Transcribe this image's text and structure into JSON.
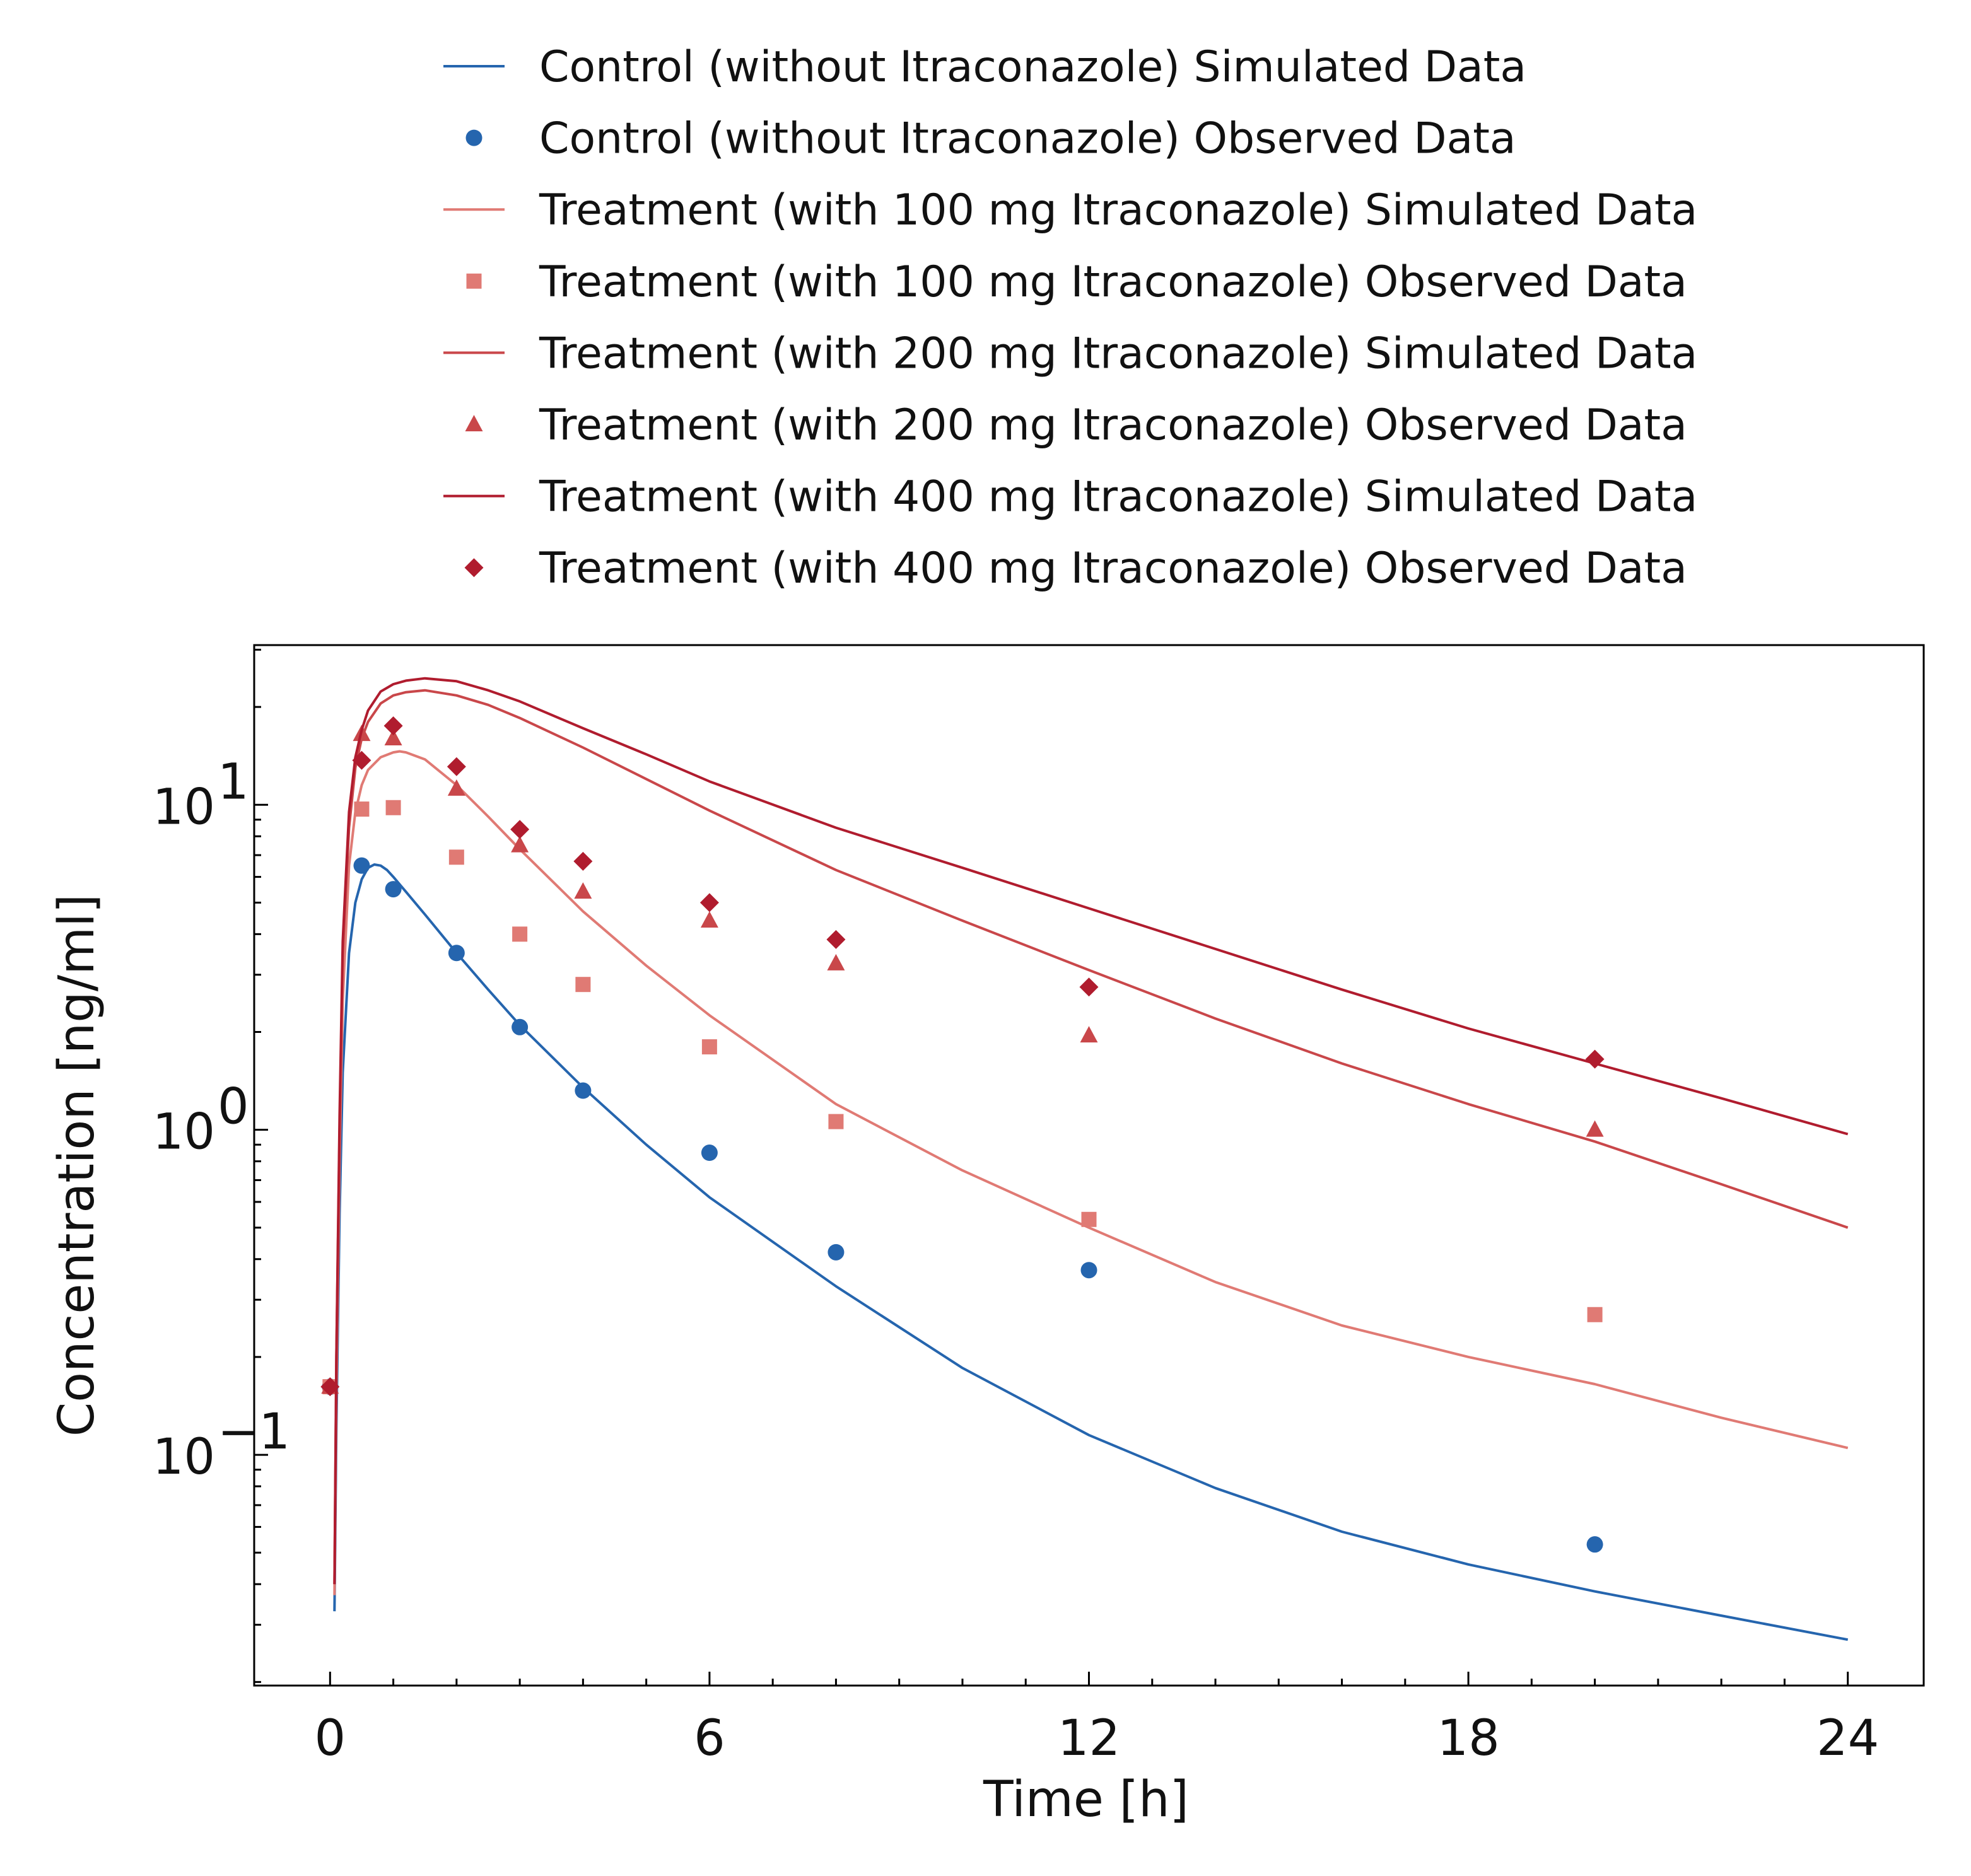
{
  "chart_data": {
    "type": "line",
    "xlabel": "Time [h]",
    "ylabel": "Concentration [ng/ml]",
    "xlim": [
      -1.2,
      25.2
    ],
    "ylim": [
      0.0195,
      31.0
    ],
    "yscale": "log",
    "xticks": [
      0,
      6,
      12,
      18,
      24
    ],
    "xtick_labels": [
      "0",
      "6",
      "12",
      "18",
      "24"
    ],
    "yticks": [
      {
        "value": 10,
        "base": "10",
        "exp": "1"
      },
      {
        "value": 1,
        "base": "10",
        "exp": "0"
      },
      {
        "value": 0.1,
        "base": "10",
        "exp": "−1"
      }
    ],
    "legend_position": "top",
    "grid": false,
    "series": [
      {
        "name": "Control (without Itraconazole) Simulated Data",
        "kind": "line",
        "color": "#2565ae",
        "x": [
          0.07,
          0.1,
          0.15,
          0.2,
          0.3,
          0.4,
          0.5,
          0.6,
          0.7,
          0.8,
          0.9,
          1.0,
          1.2,
          1.5,
          2.0,
          2.5,
          3.0,
          4.0,
          5.0,
          6.0,
          8.0,
          10.0,
          12.0,
          14.0,
          16.0,
          18.0,
          20.0,
          22.0,
          24.0
        ],
        "y": [
          0.033,
          0.12,
          0.55,
          1.5,
          3.5,
          5.0,
          5.9,
          6.4,
          6.55,
          6.5,
          6.3,
          6.0,
          5.4,
          4.6,
          3.5,
          2.7,
          2.1,
          1.35,
          0.9,
          0.62,
          0.33,
          0.185,
          0.115,
          0.079,
          0.058,
          0.046,
          0.038,
          0.032,
          0.027
        ]
      },
      {
        "name": "Control (without Itraconazole) Observed Data",
        "kind": "scatter",
        "marker": "circle",
        "color": "#2565ae",
        "x": [
          0.0,
          0.5,
          1.0,
          2.0,
          3.0,
          4.0,
          6.0,
          8.0,
          12.0,
          20.0
        ],
        "y": [
          0.162,
          6.5,
          5.5,
          3.5,
          2.07,
          1.32,
          0.85,
          0.42,
          0.37,
          0.053
        ]
      },
      {
        "name": "Treatment (with 100 mg Itraconazole) Simulated Data",
        "kind": "line",
        "color": "#e07a74",
        "x": [
          0.07,
          0.1,
          0.15,
          0.2,
          0.3,
          0.4,
          0.5,
          0.6,
          0.8,
          1.0,
          1.1,
          1.2,
          1.5,
          2.0,
          2.5,
          3.0,
          4.0,
          5.0,
          6.0,
          8.0,
          10.0,
          12.0,
          14.0,
          16.0,
          18.0,
          20.0,
          22.0,
          24.0
        ],
        "y": [
          0.037,
          0.15,
          0.8,
          2.5,
          6.5,
          9.5,
          11.5,
          12.8,
          14.0,
          14.5,
          14.6,
          14.5,
          13.8,
          11.5,
          9.2,
          7.3,
          4.7,
          3.2,
          2.25,
          1.2,
          0.75,
          0.5,
          0.34,
          0.25,
          0.2,
          0.165,
          0.13,
          0.105
        ]
      },
      {
        "name": "Treatment (with 100 mg Itraconazole) Observed Data",
        "kind": "scatter",
        "marker": "square",
        "color": "#e07a74",
        "x": [
          0.0,
          0.5,
          1.0,
          2.0,
          3.0,
          4.0,
          6.0,
          8.0,
          12.0,
          20.0
        ],
        "y": [
          0.162,
          9.7,
          9.8,
          6.9,
          4.0,
          2.8,
          1.8,
          1.06,
          0.53,
          0.27
        ]
      },
      {
        "name": "Treatment (with 200 mg Itraconazole) Simulated Data",
        "kind": "line",
        "color": "#c9474a",
        "x": [
          0.07,
          0.1,
          0.15,
          0.2,
          0.3,
          0.4,
          0.5,
          0.6,
          0.8,
          1.0,
          1.2,
          1.5,
          2.0,
          2.5,
          3.0,
          4.0,
          5.0,
          6.0,
          8.0,
          10.0,
          12.0,
          14.0,
          16.0,
          18.0,
          20.0,
          22.0,
          24.0
        ],
        "y": [
          0.04,
          0.2,
          1.0,
          3.5,
          8.5,
          13.0,
          16.0,
          18.0,
          20.5,
          21.7,
          22.2,
          22.5,
          21.7,
          20.3,
          18.5,
          15.0,
          12.0,
          9.6,
          6.3,
          4.4,
          3.1,
          2.2,
          1.6,
          1.2,
          0.92,
          0.68,
          0.5
        ]
      },
      {
        "name": "Treatment (with 200 mg Itraconazole) Observed Data",
        "kind": "scatter",
        "marker": "triangle",
        "color": "#c9474a",
        "x": [
          0.0,
          0.5,
          1.0,
          2.0,
          3.0,
          4.0,
          6.0,
          8.0,
          12.0,
          20.0
        ],
        "y": [
          0.162,
          16.5,
          16.0,
          11.2,
          7.5,
          5.4,
          4.4,
          3.25,
          1.95,
          1.0
        ]
      },
      {
        "name": "Treatment (with 400 mg Itraconazole) Simulated Data",
        "kind": "line",
        "color": "#b01c2e",
        "x": [
          0.07,
          0.1,
          0.15,
          0.2,
          0.3,
          0.4,
          0.5,
          0.6,
          0.8,
          1.0,
          1.2,
          1.5,
          2.0,
          2.5,
          3.0,
          4.0,
          5.0,
          6.0,
          8.0,
          10.0,
          12.0,
          14.0,
          16.0,
          18.0,
          20.0,
          22.0,
          24.0
        ],
        "y": [
          0.04,
          0.2,
          1.1,
          3.8,
          9.5,
          14.0,
          17.0,
          19.5,
          22.3,
          23.5,
          24.1,
          24.5,
          24.0,
          22.5,
          20.8,
          17.2,
          14.3,
          11.8,
          8.5,
          6.4,
          4.8,
          3.6,
          2.7,
          2.05,
          1.6,
          1.25,
          0.97
        ]
      },
      {
        "name": "Treatment (with 400 mg Itraconazole) Observed Data",
        "kind": "scatter",
        "marker": "diamond",
        "color": "#b01c2e",
        "x": [
          0.0,
          0.5,
          1.0,
          2.0,
          3.0,
          4.0,
          6.0,
          8.0,
          12.0,
          20.0
        ],
        "y": [
          0.162,
          13.7,
          17.5,
          13.1,
          8.4,
          6.7,
          5.0,
          3.85,
          2.75,
          1.65
        ]
      }
    ]
  }
}
